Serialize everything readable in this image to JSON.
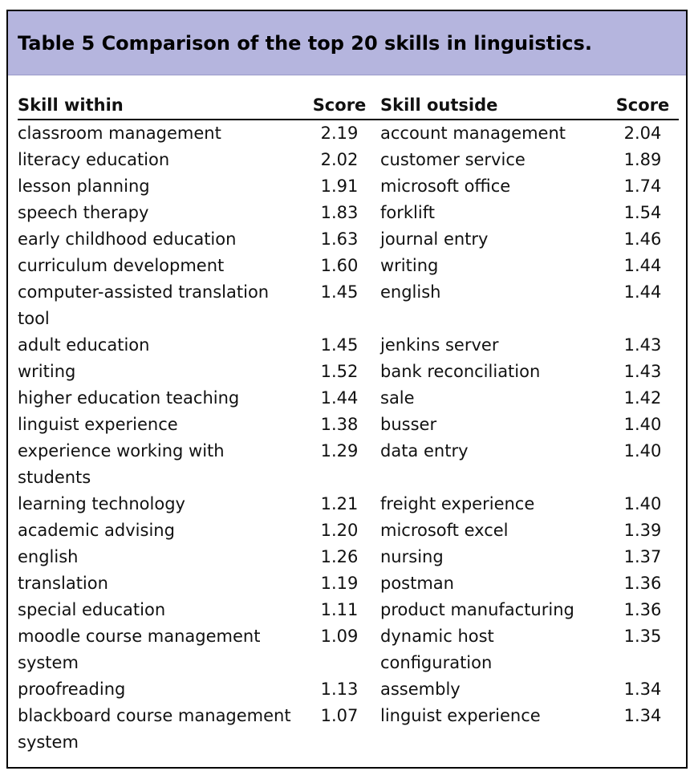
{
  "header": {
    "title": "Table 5 Comparison of the top 20 skills in linguistics."
  },
  "table": {
    "columns": [
      "Skill within",
      "Score",
      "Skill outside",
      "Score"
    ],
    "rows": [
      [
        "classroom management",
        "2.19",
        "account management",
        "2.04"
      ],
      [
        "literacy education",
        "2.02",
        "customer service",
        "1.89"
      ],
      [
        "lesson planning",
        "1.91",
        "microsoft office",
        "1.74"
      ],
      [
        "speech therapy",
        "1.83",
        "forklift",
        "1.54"
      ],
      [
        "early childhood education",
        "1.63",
        "journal entry",
        "1.46"
      ],
      [
        "curriculum development",
        "1.60",
        "writing",
        "1.44"
      ],
      [
        "computer-assisted translation tool",
        "1.45",
        "english",
        "1.44"
      ],
      [
        "adult education",
        "1.45",
        "jenkins server",
        "1.43"
      ],
      [
        "writing",
        "1.52",
        "bank reconciliation",
        "1.43"
      ],
      [
        "higher education teaching",
        "1.44",
        "sale",
        "1.42"
      ],
      [
        "linguist experience",
        "1.38",
        "busser",
        "1.40"
      ],
      [
        "experience working with students",
        "1.29",
        "data entry",
        "1.40"
      ],
      [
        "learning technology",
        "1.21",
        "freight experience",
        "1.40"
      ],
      [
        "academic advising",
        "1.20",
        "microsoft excel",
        "1.39"
      ],
      [
        "english",
        "1.26",
        "nursing",
        "1.37"
      ],
      [
        "translation",
        "1.19",
        "postman",
        "1.36"
      ],
      [
        "special education",
        "1.11",
        "product manufacturing",
        "1.36"
      ],
      [
        "moodle course management system",
        "1.09",
        "dynamic host configuration",
        "1.35"
      ],
      [
        "proofreading",
        "1.13",
        "assembly",
        "1.34"
      ],
      [
        "blackboard course management system",
        "1.07",
        "linguist experience",
        "1.34"
      ]
    ]
  }
}
